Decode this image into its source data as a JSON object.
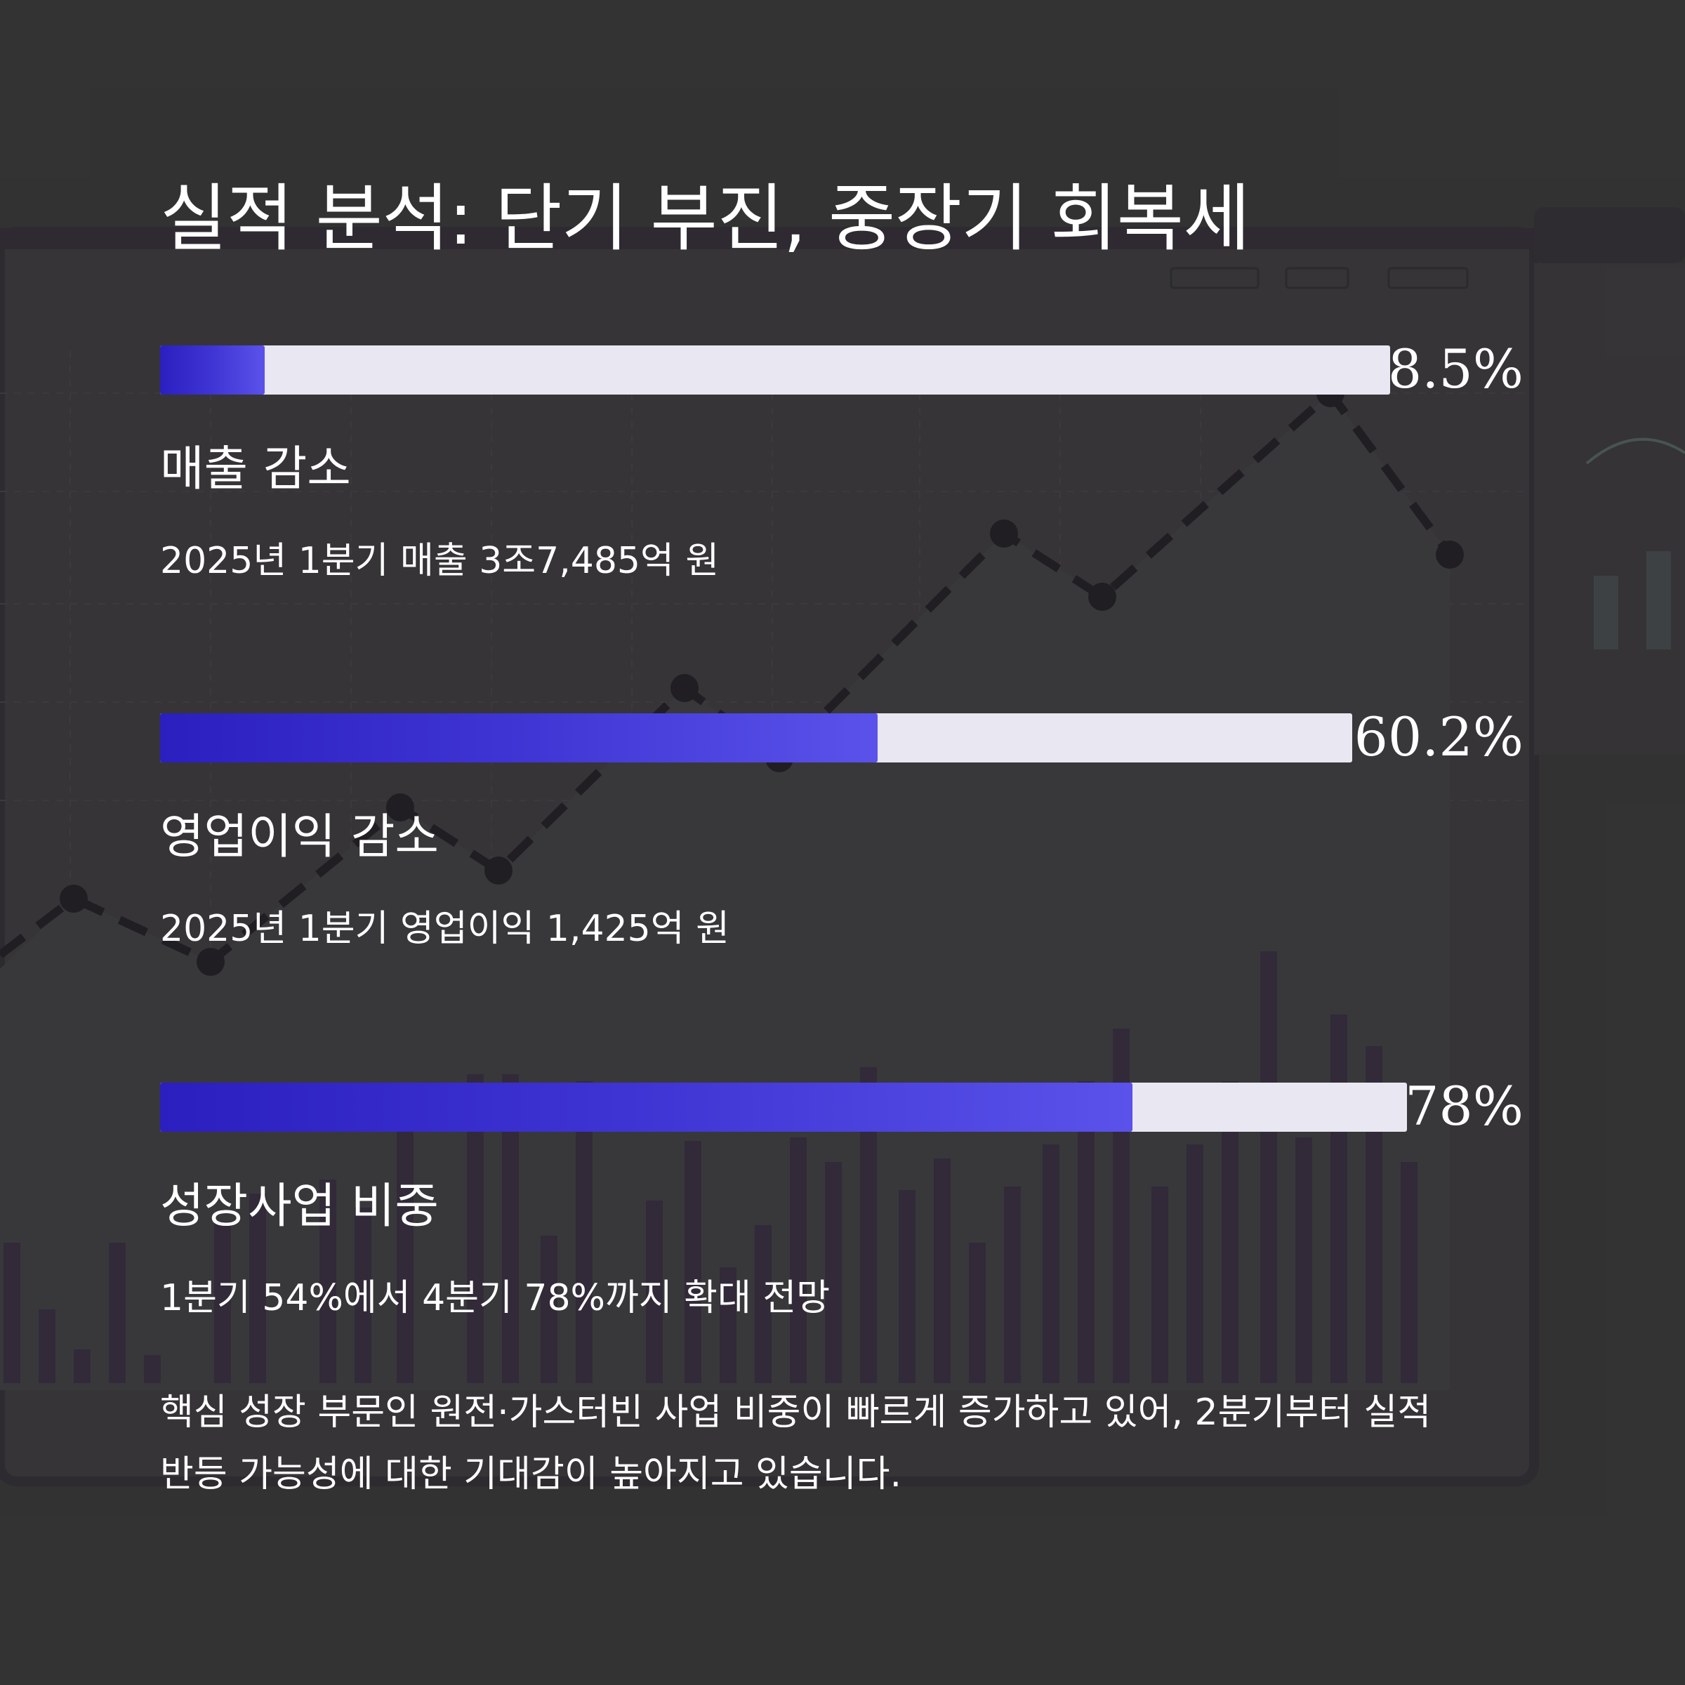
{
  "title": "실적 분석: 단기 부진, 중장기 회복세",
  "metrics": [
    {
      "percent_label": "8.5%",
      "fill_fraction": 0.085,
      "label": "매출 감소",
      "description": "2025년 1분기 매출 3조7,485억 원"
    },
    {
      "percent_label": "60.2%",
      "fill_fraction": 0.602,
      "label": "영업이익 감소",
      "description": "2025년 1분기 영업이익 1,425억 원"
    },
    {
      "percent_label": "78%",
      "fill_fraction": 0.78,
      "label": "성장사업 비중",
      "description": "1분기 54%에서 4분기 78%까지 확대 전망"
    }
  ],
  "summary": {
    "line1": "핵심 성장 부문인 원전·가스터빈 사업 비중이 빠르게 증가하고 있어, 2분기부터 실적",
    "line2": "반등 가능성에 대한 기대감이 높아지고 있습니다."
  },
  "colors": {
    "background": "#333333",
    "bar_track": "#e9e7f2",
    "bar_fill_start": "#2b1fbf",
    "bar_fill_end": "#5a52ea",
    "text": "#ffffff"
  }
}
